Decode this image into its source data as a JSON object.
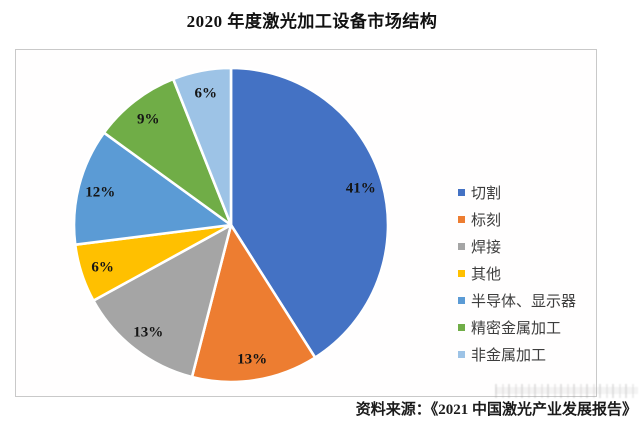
{
  "title": "2020 年度激光加工设备市场结构",
  "source_note": "资料来源：《2021 中国激光产业发展报告》",
  "chart_data": {
    "type": "pie",
    "title": "2020 年度激光加工设备市场结构",
    "unit": "percent",
    "start_angle_deg": 0,
    "direction": "clockwise",
    "legend_position": "right",
    "slices": [
      {
        "label": "切割",
        "value": 41,
        "percent_label": "41%",
        "color": "#4472C4"
      },
      {
        "label": "标刻",
        "value": 13,
        "percent_label": "13%",
        "color": "#ED7D31"
      },
      {
        "label": "焊接",
        "value": 13,
        "percent_label": "13%",
        "color": "#A5A5A5"
      },
      {
        "label": "其他",
        "value": 6,
        "percent_label": "6%",
        "color": "#FFC000"
      },
      {
        "label": "半导体、显示器",
        "value": 12,
        "percent_label": "12%",
        "color": "#5B9BD5"
      },
      {
        "label": "精密金属加工",
        "value": 9,
        "percent_label": "9%",
        "color": "#70AD47"
      },
      {
        "label": "非金属加工",
        "value": 6,
        "percent_label": "6%",
        "color": "#9DC3E6"
      }
    ]
  }
}
